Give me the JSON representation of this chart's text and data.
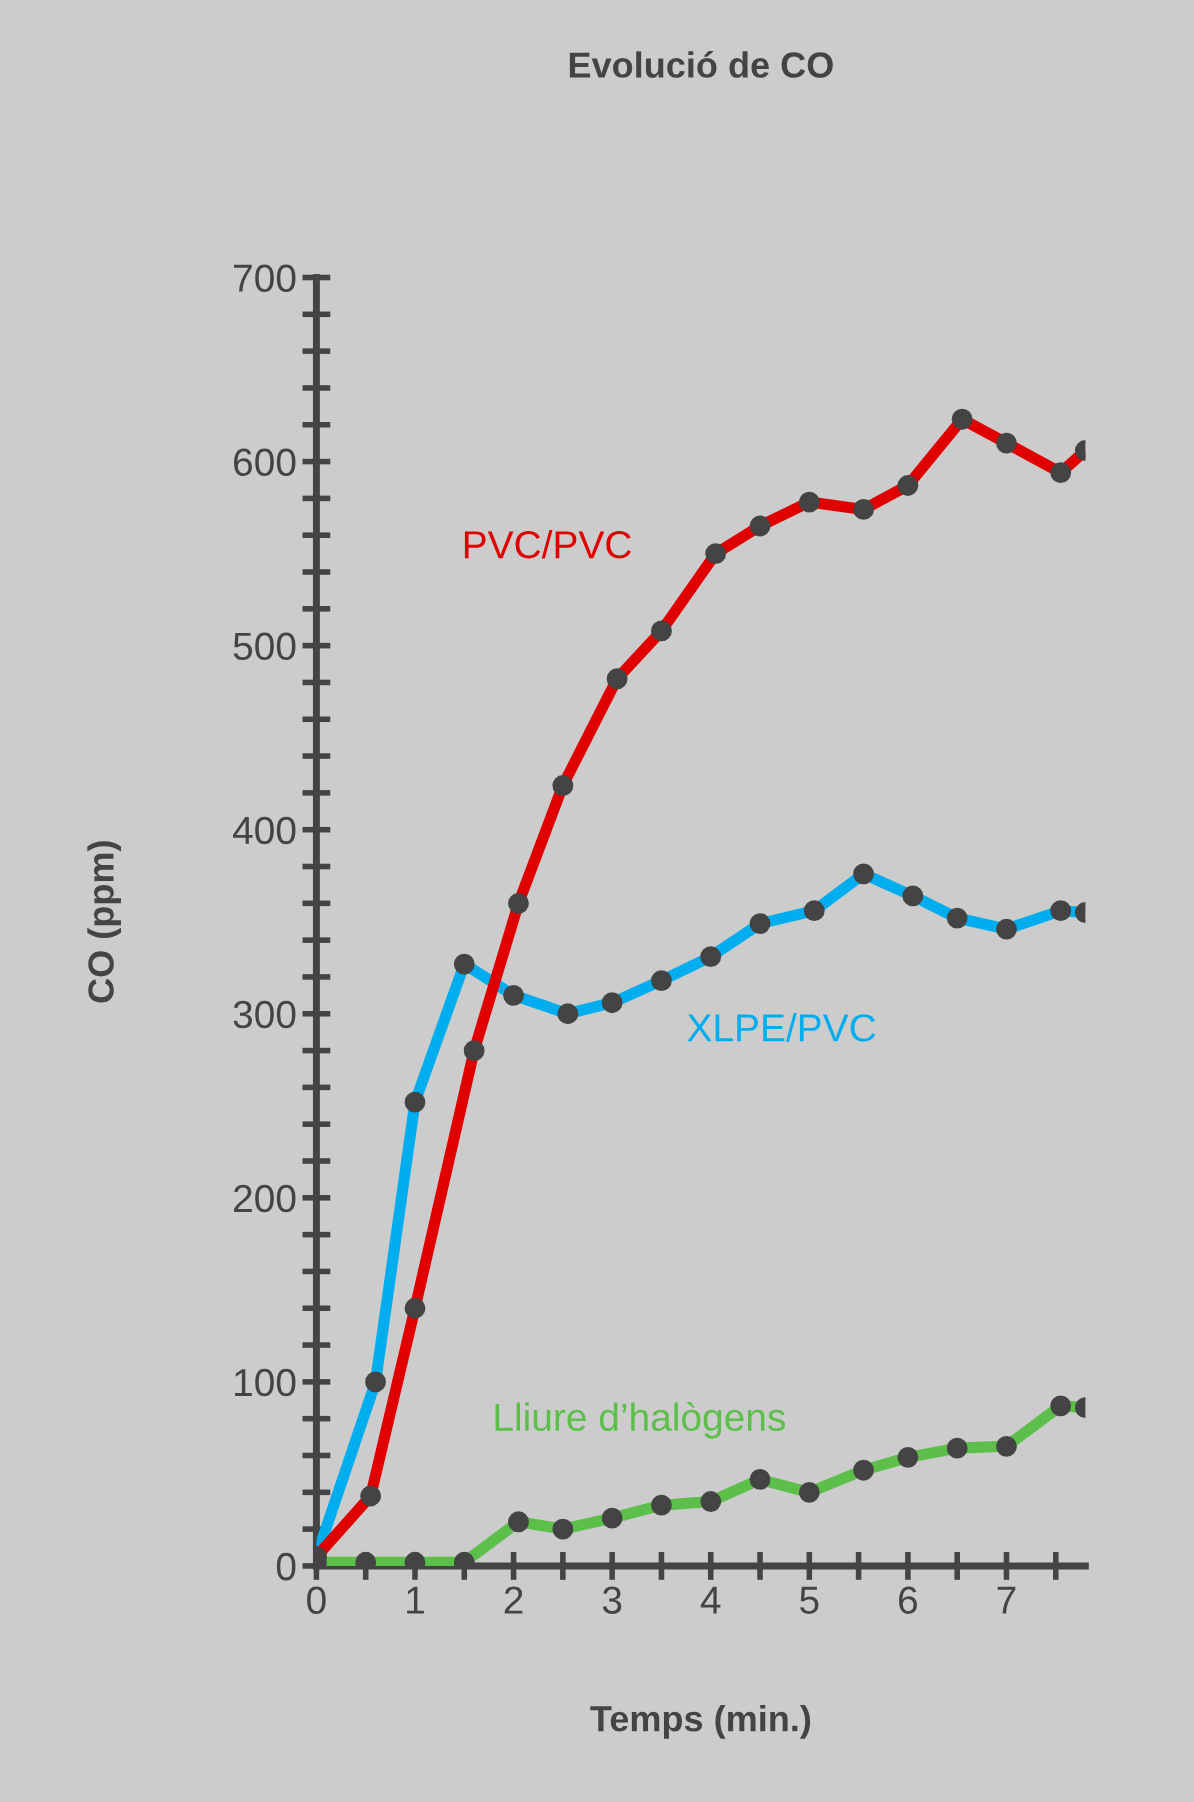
{
  "chart_data": {
    "type": "line",
    "title": "Evolució de CO",
    "xlabel": "Temps (min.)",
    "ylabel": "CO (ppm)",
    "xlim": [
      0,
      7.8
    ],
    "ylim": [
      0,
      700
    ],
    "xticks": [
      0,
      {
        "value": 0.5,
        "label": null
      },
      1,
      {
        "value": 1.5,
        "label": null
      },
      2,
      {
        "value": 2.5,
        "label": null
      },
      3,
      {
        "value": 3.5,
        "label": null
      },
      4,
      {
        "value": 4.5,
        "label": null
      },
      5,
      {
        "value": 5.5,
        "label": null
      },
      6,
      {
        "value": 6.5,
        "label": null
      },
      7,
      {
        "value": 7.5,
        "label": null
      }
    ],
    "yticks": [
      0,
      {
        "value": 20,
        "label": null
      },
      {
        "value": 40,
        "label": null
      },
      {
        "value": 60,
        "label": null
      },
      {
        "value": 80,
        "label": null
      },
      100,
      {
        "value": 120,
        "label": null
      },
      {
        "value": 140,
        "label": null
      },
      {
        "value": 160,
        "label": null
      },
      {
        "value": 180,
        "label": null
      },
      200,
      {
        "value": 220,
        "label": null
      },
      {
        "value": 240,
        "label": null
      },
      {
        "value": 260,
        "label": null
      },
      {
        "value": 280,
        "label": null
      },
      300,
      {
        "value": 320,
        "label": null
      },
      {
        "value": 340,
        "label": null
      },
      {
        "value": 360,
        "label": null
      },
      {
        "value": 380,
        "label": null
      },
      400,
      {
        "value": 420,
        "label": null
      },
      {
        "value": 440,
        "label": null
      },
      {
        "value": 460,
        "label": null
      },
      {
        "value": 480,
        "label": null
      },
      500,
      {
        "value": 520,
        "label": null
      },
      {
        "value": 540,
        "label": null
      },
      {
        "value": 560,
        "label": null
      },
      {
        "value": 580,
        "label": null
      },
      600,
      {
        "value": 620,
        "label": null
      },
      {
        "value": 640,
        "label": null
      },
      {
        "value": 660,
        "label": null
      },
      {
        "value": 680,
        "label": null
      },
      700
    ],
    "grid": false,
    "legend": false,
    "marker": "circle",
    "line_style": "solid",
    "series": [
      {
        "name": "PVC/PVC",
        "color": "#e00000",
        "x": [
          0,
          0.55,
          1,
          1.6,
          2.05,
          2.5,
          3.05,
          3.5,
          4.05,
          4.5,
          5,
          5.55,
          6,
          6.55,
          7,
          7.55,
          7.8
        ],
        "values": [
          5,
          38,
          140,
          280,
          360,
          424,
          482,
          508,
          550,
          565,
          578,
          574,
          587,
          623,
          610,
          594,
          606
        ]
      },
      {
        "name": "XLPE/PVC",
        "color": "#00aeef",
        "x": [
          0,
          0.6,
          1,
          1.5,
          2,
          2.55,
          3,
          3.5,
          4,
          4.5,
          5.05,
          5.55,
          6.05,
          6.5,
          7,
          7.55,
          7.8
        ],
        "values": [
          5,
          100,
          252,
          327,
          310,
          300,
          306,
          318,
          331,
          349,
          356,
          376,
          364,
          352,
          346,
          356,
          355
        ]
      },
      {
        "name": "Lliure d’halògens",
        "color": "#5bbf4a",
        "x": [
          0,
          0.5,
          1,
          1.5,
          2.05,
          2.5,
          3,
          3.5,
          4,
          4.5,
          5,
          5.55,
          6,
          6.5,
          7,
          7.55,
          7.8
        ],
        "values": [
          2,
          2,
          2,
          2,
          24,
          20,
          26,
          33,
          35,
          47,
          40,
          52,
          59,
          64,
          65,
          87,
          86
        ]
      }
    ]
  }
}
